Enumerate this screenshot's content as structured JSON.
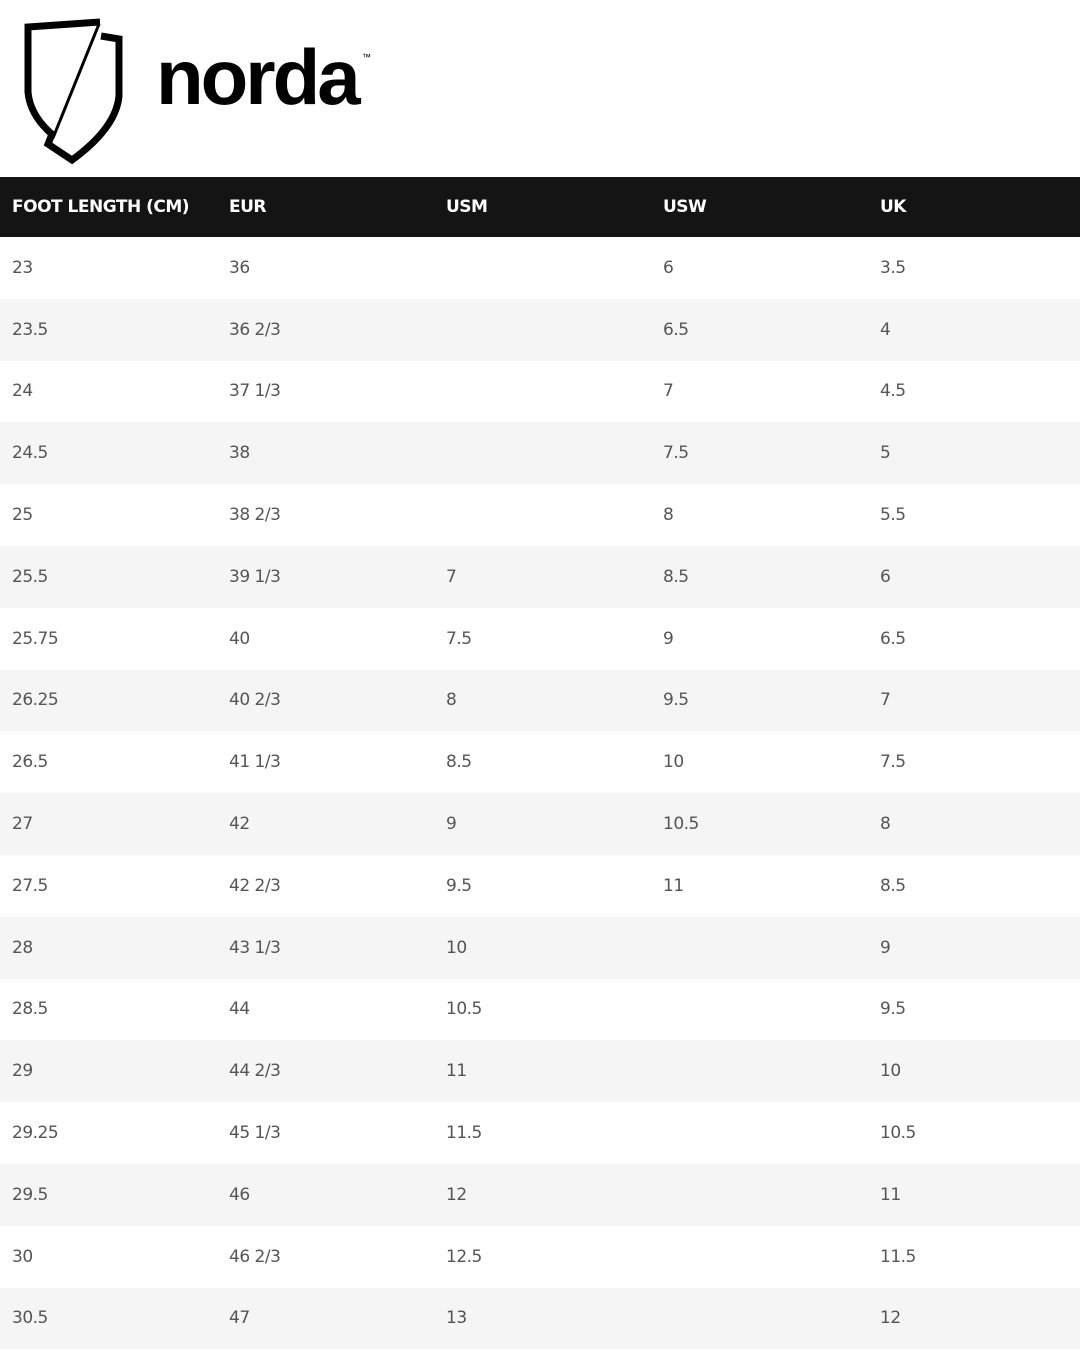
{
  "brand": {
    "name": "norda",
    "trademark": "™"
  },
  "table": {
    "headers": [
      "FOOT LENGTH (CM)",
      "EUR",
      "USM",
      "USW",
      "UK"
    ],
    "rows": [
      [
        "23",
        "36",
        "",
        "6",
        "3.5"
      ],
      [
        "23.5",
        "36 2/3",
        "",
        "6.5",
        "4"
      ],
      [
        "24",
        "37 1/3",
        "",
        "7",
        "4.5"
      ],
      [
        "24.5",
        "38",
        "",
        "7.5",
        "5"
      ],
      [
        "25",
        "38 2/3",
        "",
        "8",
        "5.5"
      ],
      [
        "25.5",
        "39 1/3",
        "7",
        "8.5",
        "6"
      ],
      [
        "25.75",
        "40",
        "7.5",
        "9",
        "6.5"
      ],
      [
        "26.25",
        "40 2/3",
        "8",
        "9.5",
        "7"
      ],
      [
        "26.5",
        "41 1/3",
        "8.5",
        "10",
        "7.5"
      ],
      [
        "27",
        "42",
        "9",
        "10.5",
        "8"
      ],
      [
        "27.5",
        "42 2/3",
        "9.5",
        "11",
        "8.5"
      ],
      [
        "28",
        "43 1/3",
        "10",
        "",
        "9"
      ],
      [
        "28.5",
        "44",
        "10.5",
        "",
        "9.5"
      ],
      [
        "29",
        "44 2/3",
        "11",
        "",
        "10"
      ],
      [
        "29.25",
        "45 1/3",
        "11.5",
        "",
        "10.5"
      ],
      [
        "29.5",
        "46",
        "12",
        "",
        "11"
      ],
      [
        "30",
        "46 2/3",
        "12.5",
        "",
        "11.5"
      ],
      [
        "30.5",
        "47",
        "13",
        "",
        "12"
      ]
    ]
  }
}
